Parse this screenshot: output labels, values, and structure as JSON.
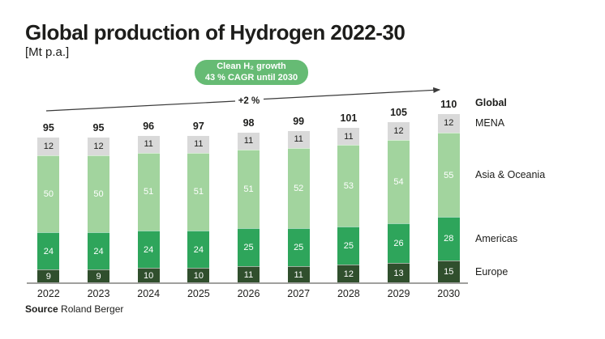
{
  "title": "Global production of Hydrogen 2022-30",
  "units": "[Mt p.a.]",
  "badge": {
    "line1": "Clean H₂ growth",
    "line2": "43 % CAGR until 2030",
    "color": "#66bb74"
  },
  "trend_label": "+2 %",
  "source": {
    "label": "Source",
    "text": " Roland Berger"
  },
  "chart_data": {
    "type": "bar",
    "stacked": true,
    "title": "Global production of Hydrogen 2022-30",
    "ylabel": "[Mt p.a.]",
    "grid": false,
    "legend_position": "right",
    "categories": [
      "2022",
      "2023",
      "2024",
      "2025",
      "2026",
      "2027",
      "2028",
      "2029",
      "2030"
    ],
    "series": [
      {
        "name": "Europe",
        "color": "#304f2d",
        "text_color": "#ffffff",
        "values": [
          9,
          9,
          10,
          10,
          11,
          11,
          12,
          13,
          15
        ]
      },
      {
        "name": "Americas",
        "color": "#2ea55b",
        "text_color": "#ffffff",
        "values": [
          24,
          24,
          24,
          24,
          25,
          25,
          25,
          26,
          28
        ]
      },
      {
        "name": "Asia & Oceania",
        "color": "#a2d49e",
        "text_color": "#ffffff",
        "values": [
          50,
          50,
          51,
          51,
          51,
          52,
          53,
          54,
          55
        ]
      },
      {
        "name": "MENA",
        "color": "#d9d9d9",
        "text_color": "#1d1d1b",
        "values": [
          12,
          12,
          11,
          11,
          11,
          11,
          11,
          12,
          12
        ]
      }
    ],
    "totals": [
      95,
      95,
      96,
      97,
      98,
      99,
      101,
      105,
      110
    ],
    "totals_label": "Global",
    "annotation": "+2 % (CAGR arrow from 2022 to 2030)"
  }
}
